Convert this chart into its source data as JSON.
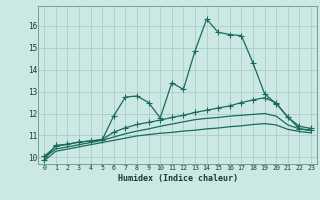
{
  "xlabel": "Humidex (Indice chaleur)",
  "bg_color": "#cce8e4",
  "grid_color": "#b0d0cc",
  "line_color": "#1a6b5a",
  "xlim": [
    -0.5,
    23.5
  ],
  "ylim": [
    9.7,
    16.9
  ],
  "xticks": [
    0,
    1,
    2,
    3,
    4,
    5,
    6,
    7,
    8,
    9,
    10,
    11,
    12,
    13,
    14,
    15,
    16,
    17,
    18,
    19,
    20,
    21,
    22,
    23
  ],
  "yticks": [
    10,
    11,
    12,
    13,
    14,
    15,
    16
  ],
  "curve1_x": [
    0,
    1,
    2,
    3,
    4,
    5,
    6,
    7,
    8,
    9,
    10,
    11,
    12,
    13,
    14,
    15,
    16,
    17,
    18,
    19,
    20,
    21,
    22,
    23
  ],
  "curve1_y": [
    9.9,
    10.55,
    10.6,
    10.7,
    10.75,
    10.8,
    11.9,
    12.75,
    12.8,
    12.5,
    11.8,
    13.4,
    13.1,
    14.85,
    16.3,
    15.7,
    15.6,
    15.55,
    14.3,
    12.9,
    12.45,
    11.85,
    11.3,
    11.25
  ],
  "curve2_x": [
    0,
    1,
    2,
    3,
    4,
    5,
    6,
    7,
    8,
    9,
    10,
    11,
    12,
    13,
    14,
    15,
    16,
    17,
    18,
    19,
    20,
    21,
    22,
    23
  ],
  "curve2_y": [
    10.05,
    10.5,
    10.6,
    10.7,
    10.75,
    10.82,
    11.15,
    11.35,
    11.5,
    11.6,
    11.7,
    11.82,
    11.92,
    12.05,
    12.15,
    12.25,
    12.35,
    12.5,
    12.62,
    12.72,
    12.48,
    11.82,
    11.42,
    11.32
  ],
  "curve3_x": [
    0,
    1,
    2,
    3,
    4,
    5,
    6,
    7,
    8,
    9,
    10,
    11,
    12,
    13,
    14,
    15,
    16,
    17,
    18,
    19,
    20,
    21,
    22,
    23
  ],
  "curve3_y": [
    10.0,
    10.38,
    10.48,
    10.58,
    10.68,
    10.78,
    10.93,
    11.08,
    11.2,
    11.3,
    11.42,
    11.52,
    11.62,
    11.72,
    11.78,
    11.82,
    11.88,
    11.92,
    11.96,
    12.0,
    11.88,
    11.48,
    11.3,
    11.22
  ],
  "curve4_x": [
    0,
    1,
    2,
    3,
    4,
    5,
    6,
    7,
    8,
    9,
    10,
    11,
    12,
    13,
    14,
    15,
    16,
    17,
    18,
    19,
    20,
    21,
    22,
    23
  ],
  "curve4_y": [
    9.85,
    10.28,
    10.38,
    10.48,
    10.58,
    10.68,
    10.78,
    10.88,
    10.98,
    11.04,
    11.1,
    11.14,
    11.2,
    11.24,
    11.3,
    11.34,
    11.4,
    11.44,
    11.5,
    11.54,
    11.48,
    11.28,
    11.18,
    11.12
  ]
}
